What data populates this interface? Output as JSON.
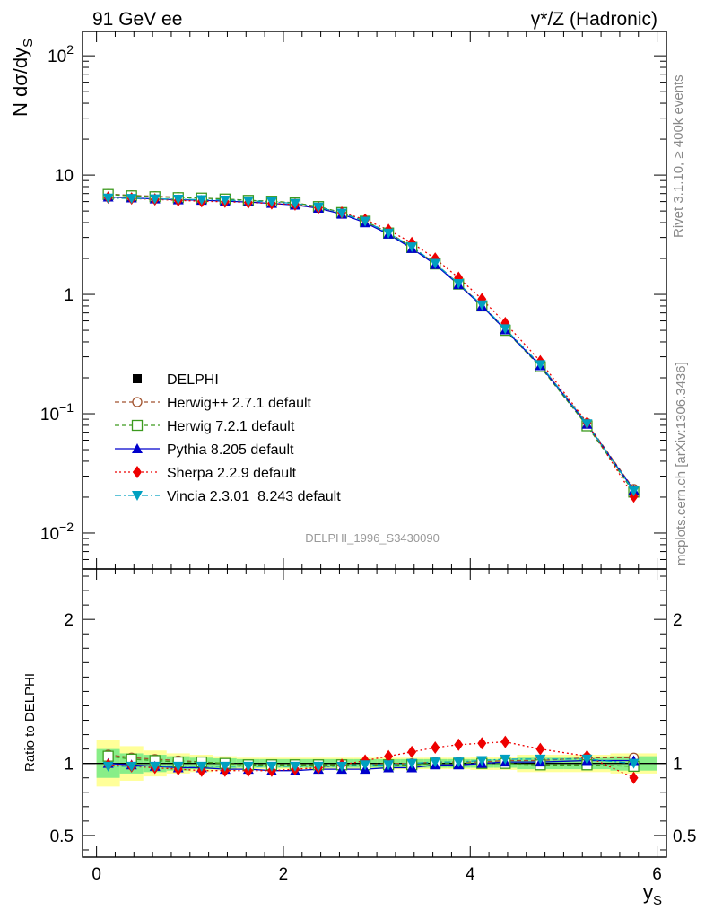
{
  "header": {
    "left_title": "91 GeV ee",
    "right_title": "γ*/Z (Hadronic)"
  },
  "side_labels": {
    "rivet": "Rivet 3.1.10, ≥ 400k events",
    "mcplots": "mcplots.cern.ch [arXiv:1306.3436]"
  },
  "watermark": "DELPHI_1996_S3430090",
  "chart_data": {
    "type": "line",
    "title": "91 GeV ee — γ*/Z (Hadronic)",
    "xlabel": "y_S",
    "ylabel": "N dσ/dy_S",
    "ratio_ylabel": "Ratio to DELPHI",
    "xlim": [
      -0.15,
      6.1
    ],
    "ylim": [
      0.005,
      160
    ],
    "yscale": "log",
    "ratio_ylim": [
      0.35,
      2.35
    ],
    "x_ticks": [
      0,
      2,
      4,
      6
    ],
    "x_tick_labels": [
      "0",
      "2",
      "4",
      "6"
    ],
    "y_ticks": [
      0.01,
      0.1,
      1,
      10,
      100
    ],
    "y_tick_labels": [
      {
        "base": "10",
        "exp": "−2"
      },
      {
        "base": "10",
        "exp": "−1"
      },
      {
        "base": "1",
        "exp": ""
      },
      {
        "base": "10",
        "exp": ""
      },
      {
        "base": "10",
        "exp": "2"
      }
    ],
    "ratio_ticks": [
      0.5,
      1,
      2
    ],
    "ratio_tick_labels": [
      "0.5",
      "1",
      "2"
    ],
    "x": [
      0.125,
      0.375,
      0.625,
      0.875,
      1.125,
      1.375,
      1.625,
      1.875,
      2.125,
      2.375,
      2.625,
      2.875,
      3.125,
      3.375,
      3.625,
      3.875,
      4.125,
      4.375,
      4.75,
      5.25,
      5.75
    ],
    "x_edges": [
      0,
      0.25,
      0.5,
      0.75,
      1.0,
      1.25,
      1.5,
      1.75,
      2.0,
      2.25,
      2.5,
      2.75,
      3.0,
      3.25,
      3.5,
      3.75,
      4.0,
      4.25,
      4.5,
      5.0,
      5.5,
      6.0
    ],
    "data": {
      "name": "DELPHI",
      "values": [
        6.55,
        6.5,
        6.45,
        6.4,
        6.35,
        6.3,
        6.2,
        6.1,
        5.9,
        5.5,
        4.9,
        4.15,
        3.3,
        2.5,
        1.8,
        1.22,
        0.8,
        0.5,
        0.25,
        0.08,
        0.0225
      ],
      "band_stat": [
        0.1,
        0.07,
        0.06,
        0.05,
        0.04,
        0.035,
        0.03,
        0.03,
        0.03,
        0.03,
        0.03,
        0.03,
        0.03,
        0.03,
        0.03,
        0.03,
        0.03,
        0.03,
        0.04,
        0.04,
        0.05
      ],
      "band_total": [
        0.16,
        0.12,
        0.09,
        0.07,
        0.06,
        0.05,
        0.04,
        0.04,
        0.04,
        0.04,
        0.04,
        0.04,
        0.04,
        0.04,
        0.04,
        0.04,
        0.045,
        0.045,
        0.06,
        0.06,
        0.07
      ]
    },
    "series": [
      {
        "name": "Herwig++ 2.7.1 default",
        "color": "#a0522d",
        "marker": "open-circle",
        "linestyle": "dashed",
        "ratio": [
          1.06,
          1.04,
          1.03,
          1.02,
          1.01,
          1.0,
          0.99,
          0.99,
          0.99,
          0.99,
          0.99,
          0.99,
          1.0,
          1.0,
          1.01,
          1.01,
          1.01,
          1.02,
          1.02,
          1.04,
          1.04
        ]
      },
      {
        "name": "Herwig 7.2.1 default",
        "color": "#3c9a1e",
        "marker": "open-square",
        "linestyle": "dashed",
        "ratio": [
          1.05,
          1.03,
          1.02,
          1.01,
          1.01,
          1.0,
          0.99,
          0.99,
          0.99,
          0.99,
          0.99,
          0.99,
          0.99,
          0.99,
          1.0,
          1.0,
          1.0,
          1.0,
          0.99,
          0.99,
          0.98
        ]
      },
      {
        "name": "Pythia 8.205 default",
        "color": "#0000cc",
        "marker": "filled-triangle-up",
        "linestyle": "solid",
        "ratio": [
          1.0,
          0.99,
          0.98,
          0.97,
          0.97,
          0.96,
          0.96,
          0.95,
          0.95,
          0.96,
          0.96,
          0.96,
          0.97,
          0.97,
          0.99,
          0.99,
          1.0,
          1.01,
          1.01,
          1.02,
          1.02
        ]
      },
      {
        "name": "Sherpa 2.2.9 default",
        "color": "#ee0000",
        "marker": "filled-diamond",
        "linestyle": "dotted",
        "ratio": [
          0.99,
          0.98,
          0.97,
          0.96,
          0.95,
          0.95,
          0.95,
          0.95,
          0.96,
          0.97,
          0.99,
          1.02,
          1.05,
          1.08,
          1.11,
          1.13,
          1.14,
          1.15,
          1.1,
          1.05,
          0.9
        ]
      },
      {
        "name": "Vincia 2.3.01_8.243 default",
        "color": "#00a0c0",
        "marker": "filled-triangle-down",
        "linestyle": "dashdot",
        "ratio": [
          0.98,
          0.98,
          0.98,
          0.98,
          0.98,
          0.98,
          0.98,
          0.98,
          0.98,
          0.98,
          0.98,
          0.99,
          0.99,
          1.0,
          1.01,
          1.01,
          1.02,
          1.03,
          1.03,
          1.03,
          1.0
        ]
      }
    ]
  }
}
